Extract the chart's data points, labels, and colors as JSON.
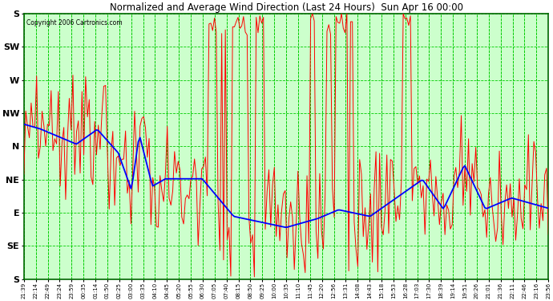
{
  "title": "Normalized and Average Wind Direction (Last 24 Hours)  Sun Apr 16 00:00",
  "copyright": "Copyright 2006 Cartronics.com",
  "bg_color": "#ffffff",
  "plot_bg_color": "#ccffcc",
  "grid_color": "#00cc00",
  "y_labels": [
    "S",
    "SE",
    "E",
    "NE",
    "N",
    "NW",
    "W",
    "SW",
    "S"
  ],
  "y_values": [
    360,
    315,
    270,
    225,
    180,
    135,
    90,
    45,
    0
  ],
  "x_labels": [
    "21:39",
    "22:14",
    "22:49",
    "23:24",
    "23:59",
    "00:35",
    "01:14",
    "01:50",
    "02:25",
    "03:00",
    "03:35",
    "04:10",
    "04:45",
    "05:20",
    "05:55",
    "06:30",
    "07:05",
    "07:40",
    "08:15",
    "08:50",
    "09:25",
    "10:00",
    "10:35",
    "11:10",
    "11:45",
    "12:20",
    "12:56",
    "13:31",
    "14:08",
    "14:43",
    "15:18",
    "15:53",
    "16:28",
    "17:03",
    "17:30",
    "18:39",
    "19:14",
    "19:51",
    "20:26",
    "21:01",
    "21:36",
    "22:11",
    "22:46",
    "23:16",
    "23:56"
  ],
  "red_line_color": "#ff0000",
  "blue_line_color": "#0000ff",
  "y_min": 0,
  "y_max": 360
}
